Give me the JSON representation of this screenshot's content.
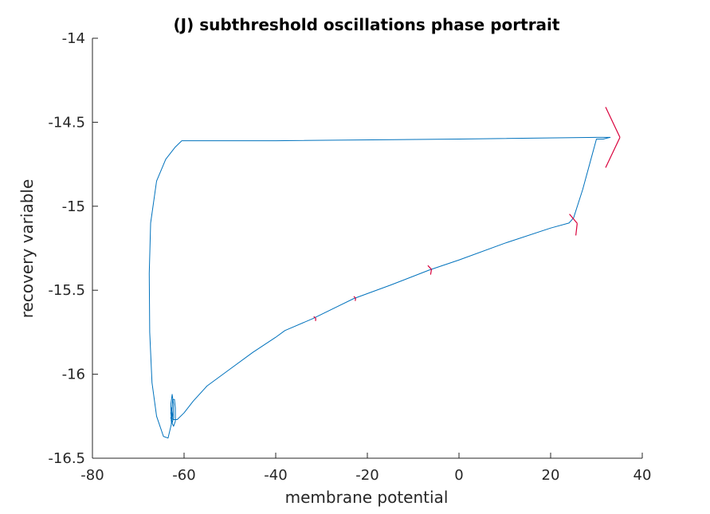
{
  "chart_data": {
    "type": "line",
    "title": "(J) subthreshold oscillations phase portrait",
    "xlabel": "membrane potential",
    "ylabel": "recovery variable",
    "xlim": [
      -80,
      40
    ],
    "ylim": [
      -16.5,
      -14
    ],
    "xticks": [
      -80,
      -60,
      -40,
      -20,
      0,
      20,
      40
    ],
    "yticks": [
      -16.5,
      -16,
      -15.5,
      -15,
      -14.5,
      -14
    ],
    "xtick_labels": [
      "-80",
      "-60",
      "-40",
      "-20",
      "0",
      "20",
      "40"
    ],
    "ytick_labels": [
      "-16.5",
      "-16",
      "-15.5",
      "-15",
      "-14.5",
      "-14"
    ],
    "grid": false,
    "line_color": "#0072BD",
    "arrow_color": "#D9003B",
    "trajectory": [
      [
        -63.0,
        -16.26
      ],
      [
        -62.3,
        -16.27
      ],
      [
        -61.5,
        -16.27
      ],
      [
        -60.0,
        -16.23
      ],
      [
        -58.0,
        -16.16
      ],
      [
        -55.0,
        -16.07
      ],
      [
        -50.0,
        -15.97
      ],
      [
        -45.0,
        -15.87
      ],
      [
        -40.0,
        -15.78
      ],
      [
        -38.0,
        -15.74
      ],
      [
        -32.0,
        -15.67
      ],
      [
        -23.0,
        -15.55
      ],
      [
        -15.0,
        -15.47
      ],
      [
        -6.5,
        -15.38
      ],
      [
        0.0,
        -15.32
      ],
      [
        10.0,
        -15.22
      ],
      [
        20.0,
        -15.13
      ],
      [
        24.0,
        -15.1
      ],
      [
        25.0,
        -15.07
      ],
      [
        27.0,
        -14.9
      ],
      [
        29.0,
        -14.7
      ],
      [
        30.0,
        -14.6
      ],
      [
        31.5,
        -14.6
      ],
      [
        33.0,
        -14.59
      ],
      [
        30.0,
        -14.59
      ],
      [
        0.0,
        -14.6
      ],
      [
        -40.0,
        -14.61
      ],
      [
        -60.5,
        -14.61
      ],
      [
        -62.0,
        -14.65
      ],
      [
        -64.0,
        -14.72
      ],
      [
        -66.0,
        -14.85
      ],
      [
        -67.3,
        -15.1
      ],
      [
        -67.6,
        -15.4
      ],
      [
        -67.5,
        -15.75
      ],
      [
        -67.0,
        -16.05
      ],
      [
        -66.0,
        -16.25
      ],
      [
        -64.5,
        -16.37
      ],
      [
        -63.5,
        -16.38
      ],
      [
        -62.8,
        -16.3
      ],
      [
        -62.5,
        -16.15
      ],
      [
        -62.1,
        -16.15
      ],
      [
        -61.9,
        -16.2
      ],
      [
        -61.9,
        -16.28
      ],
      [
        -62.3,
        -16.31
      ],
      [
        -62.8,
        -16.28
      ],
      [
        -62.9,
        -16.18
      ],
      [
        -62.6,
        -16.12
      ],
      [
        -62.3,
        -16.18
      ],
      [
        -62.3,
        -16.26
      ],
      [
        -62.6,
        -16.29
      ],
      [
        -62.9,
        -16.23
      ],
      [
        -62.7,
        -16.2
      ],
      [
        -62.5,
        -16.24
      ],
      [
        -62.6,
        -16.27
      ]
    ],
    "direction_arrows": [
      {
        "x": 32.0,
        "y": -14.59,
        "dx": 1,
        "dy": 0,
        "size": "large"
      },
      {
        "x": 24.8,
        "y": -15.11,
        "dx": 1,
        "dy": 0.3,
        "size": "medium"
      },
      {
        "x": -6.5,
        "y": -15.38,
        "dx": 1,
        "dy": 0.3,
        "size": "small"
      },
      {
        "x": -22.8,
        "y": -15.55,
        "dx": 1,
        "dy": 0.3,
        "size": "tiny"
      },
      {
        "x": -31.5,
        "y": -15.67,
        "dx": 1,
        "dy": 0.4,
        "size": "tiny"
      }
    ]
  }
}
